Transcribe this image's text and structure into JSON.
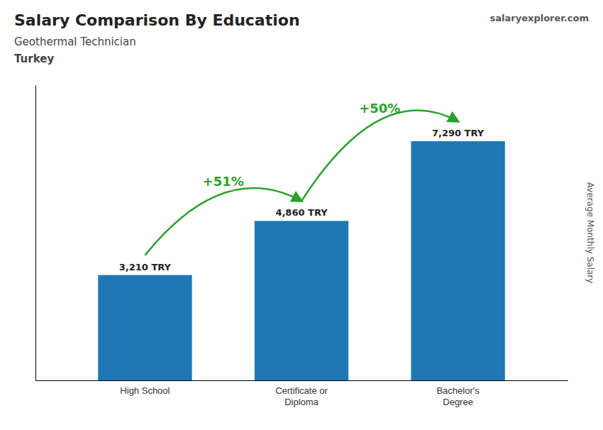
{
  "chart_data": {
    "type": "bar",
    "title": "Salary Comparison By Education",
    "subtitle": [
      "Geothermal Technician",
      "Turkey"
    ],
    "categories": [
      "High School",
      "Certificate or\nDiploma",
      "Bachelor's\nDegree"
    ],
    "values": [
      3210,
      4860,
      7290
    ],
    "value_labels": [
      "3,210 TRY",
      "4,860 TRY",
      "7,290 TRY"
    ],
    "data_labels": true,
    "annotations": [
      "+51%",
      "+50%",
      "salaryexplorer.com"
    ],
    "ylabel": "Average Monthly Salary",
    "ylim": [
      0,
      9000
    ],
    "tick_labels": "x"
  }
}
